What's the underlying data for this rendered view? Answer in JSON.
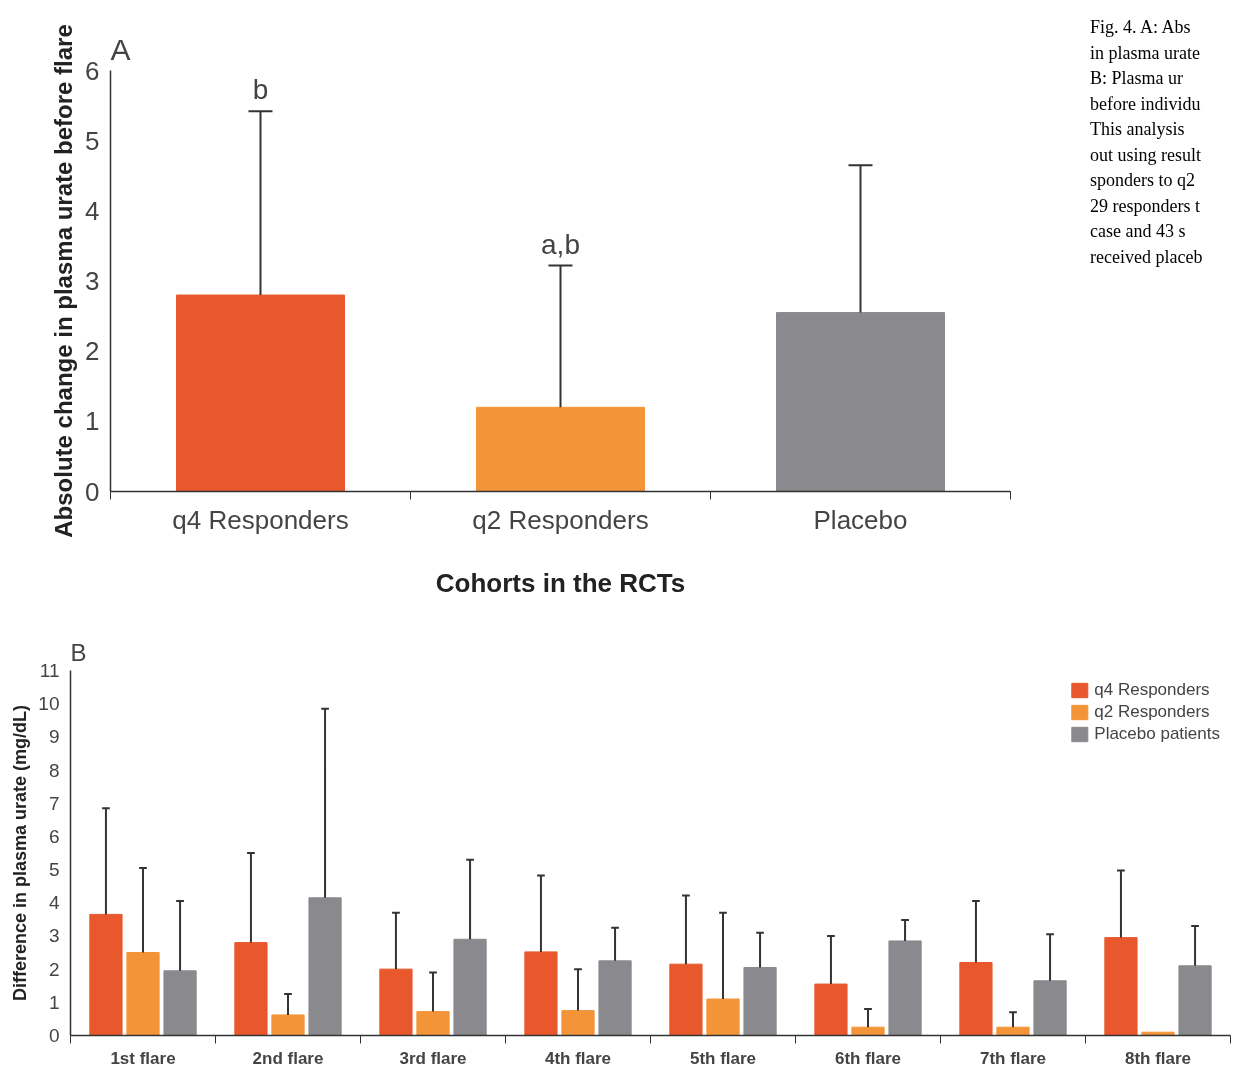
{
  "chart_data": [
    {
      "type": "bar",
      "title": "A",
      "xlabel": "Cohorts in the RCTs",
      "ylabel": "Absolute change in plasma urate before flare",
      "categories": [
        "q4 Responders",
        "q2 Responders",
        "Placebo"
      ],
      "values": [
        2.8,
        1.2,
        2.55
      ],
      "colors": [
        "#e8582c",
        "#f39438",
        "#8a8a8e"
      ],
      "errors": [
        [
          2.8,
          5.42
        ],
        [
          1.2,
          3.22
        ],
        [
          2.55,
          4.65
        ]
      ],
      "ylim": [
        0,
        6
      ],
      "yticks": [
        0,
        1,
        2,
        3,
        4,
        5,
        6
      ],
      "grid": false,
      "legend": false,
      "annotations": [
        "b",
        "a,b"
      ]
    },
    {
      "type": "bar",
      "title": "B",
      "ylabel": "Difference in plasma urate (mg/dL)",
      "categories": [
        "1st flare",
        "2nd flare",
        "3rd flare",
        "4th flare",
        "5th flare",
        "6th flare",
        "7th flare",
        "8th flare"
      ],
      "series": [
        {
          "name": "q4 Responders",
          "color": "#e8582c",
          "values": [
            3.65,
            2.8,
            2.0,
            2.52,
            2.15,
            1.55,
            2.2,
            2.95
          ],
          "errors": [
            [
              3.65,
              6.85
            ],
            [
              2.8,
              5.5
            ],
            [
              2.0,
              3.7
            ],
            [
              2.52,
              4.82
            ],
            [
              2.15,
              4.22
            ],
            [
              1.55,
              3.0
            ],
            [
              2.2,
              4.05
            ],
            [
              2.95,
              4.97
            ]
          ]
        },
        {
          "name": "q2 Responders",
          "color": "#f39438",
          "values": [
            2.5,
            0.62,
            0.72,
            0.75,
            1.1,
            0.25,
            0.25,
            0.1
          ],
          "errors": [
            [
              2.5,
              5.05
            ],
            [
              0.62,
              1.25
            ],
            [
              0.72,
              1.9
            ],
            [
              0.75,
              2.0
            ],
            [
              1.1,
              3.7
            ],
            [
              0.25,
              0.8
            ],
            [
              0.25,
              0.7
            ],
            null
          ]
        },
        {
          "name": "Placebo patients",
          "color": "#8a8a8e",
          "values": [
            1.95,
            4.15,
            2.9,
            2.25,
            2.05,
            2.85,
            1.65,
            2.1
          ],
          "errors": [
            [
              1.95,
              4.05
            ],
            [
              4.15,
              9.85
            ],
            [
              2.9,
              5.3
            ],
            [
              2.25,
              3.25
            ],
            [
              2.05,
              3.1
            ],
            [
              2.85,
              3.48
            ],
            [
              1.65,
              3.05
            ],
            [
              2.1,
              3.3
            ]
          ]
        }
      ],
      "ylim": [
        0,
        11
      ],
      "yticks": [
        0,
        1,
        2,
        3,
        4,
        5,
        6,
        7,
        8,
        9,
        10,
        11
      ],
      "grid": false,
      "legend": "top right"
    },
    {
      "type": "other",
      "annotations": [
        "Fig. 4. A: Abs",
        "in plasma urate",
        "B: Plasma ur",
        "before individu",
        "This analysis",
        "out using result",
        "sponders to q2",
        "29 responders t",
        "case and 43 s",
        "received placeb"
      ]
    }
  ]
}
